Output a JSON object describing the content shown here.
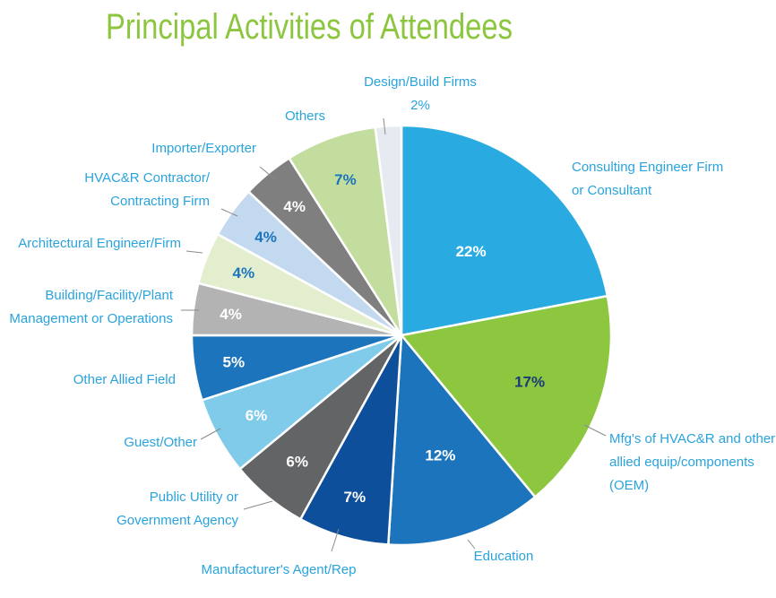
{
  "chart_data": {
    "type": "pie",
    "title": "Principal Activities of Attendees",
    "slices": [
      {
        "label_lines": [
          "Consulting Engineer Firm",
          "or Consultant"
        ],
        "value": 22,
        "value_label": "22%",
        "color": "#29abe2"
      },
      {
        "label_lines": [
          "Mfg's of HVAC&R and other",
          "allied equip/components",
          "(OEM)"
        ],
        "value": 17,
        "value_label": "17%",
        "color": "#8dc63f"
      },
      {
        "label_lines": [
          "Education"
        ],
        "value": 12,
        "value_label": "12%",
        "color": "#1c75bc"
      },
      {
        "label_lines": [
          "Manufacturer's Agent/Rep"
        ],
        "value": 7,
        "value_label": "7%",
        "color": "#0d4f9b"
      },
      {
        "label_lines": [
          "Public Utility or",
          "Government Agency"
        ],
        "value": 6,
        "value_label": "6%",
        "color": "#636466"
      },
      {
        "label_lines": [
          "Guest/Other"
        ],
        "value": 6,
        "value_label": "6%",
        "color": "#7fcbe9"
      },
      {
        "label_lines": [
          "Other Allied Field"
        ],
        "value": 5,
        "value_label": "5%",
        "color": "#1c75bc"
      },
      {
        "label_lines": [
          "Building/Facility/Plant",
          "Management or Operations"
        ],
        "value": 4,
        "value_label": "4%",
        "color": "#b3b3b3"
      },
      {
        "label_lines": [
          "Architectural Engineer/Firm"
        ],
        "value": 4,
        "value_label": "4%",
        "color": "#e3eecf"
      },
      {
        "label_lines": [
          "HVAC&R Contractor/",
          "Contracting Firm"
        ],
        "value": 4,
        "value_label": "4%",
        "color": "#c3d9ef"
      },
      {
        "label_lines": [
          "Importer/Exporter"
        ],
        "value": 4,
        "value_label": "4%",
        "color": "#7f7f7f"
      },
      {
        "label_lines": [
          "Others"
        ],
        "value": 7,
        "value_label": "7%",
        "color": "#c2dd9e"
      },
      {
        "label_lines": [
          "Design/Build Firms",
          "2%"
        ],
        "value": 2,
        "value_label": "",
        "color": "#e6ebf2"
      }
    ]
  }
}
